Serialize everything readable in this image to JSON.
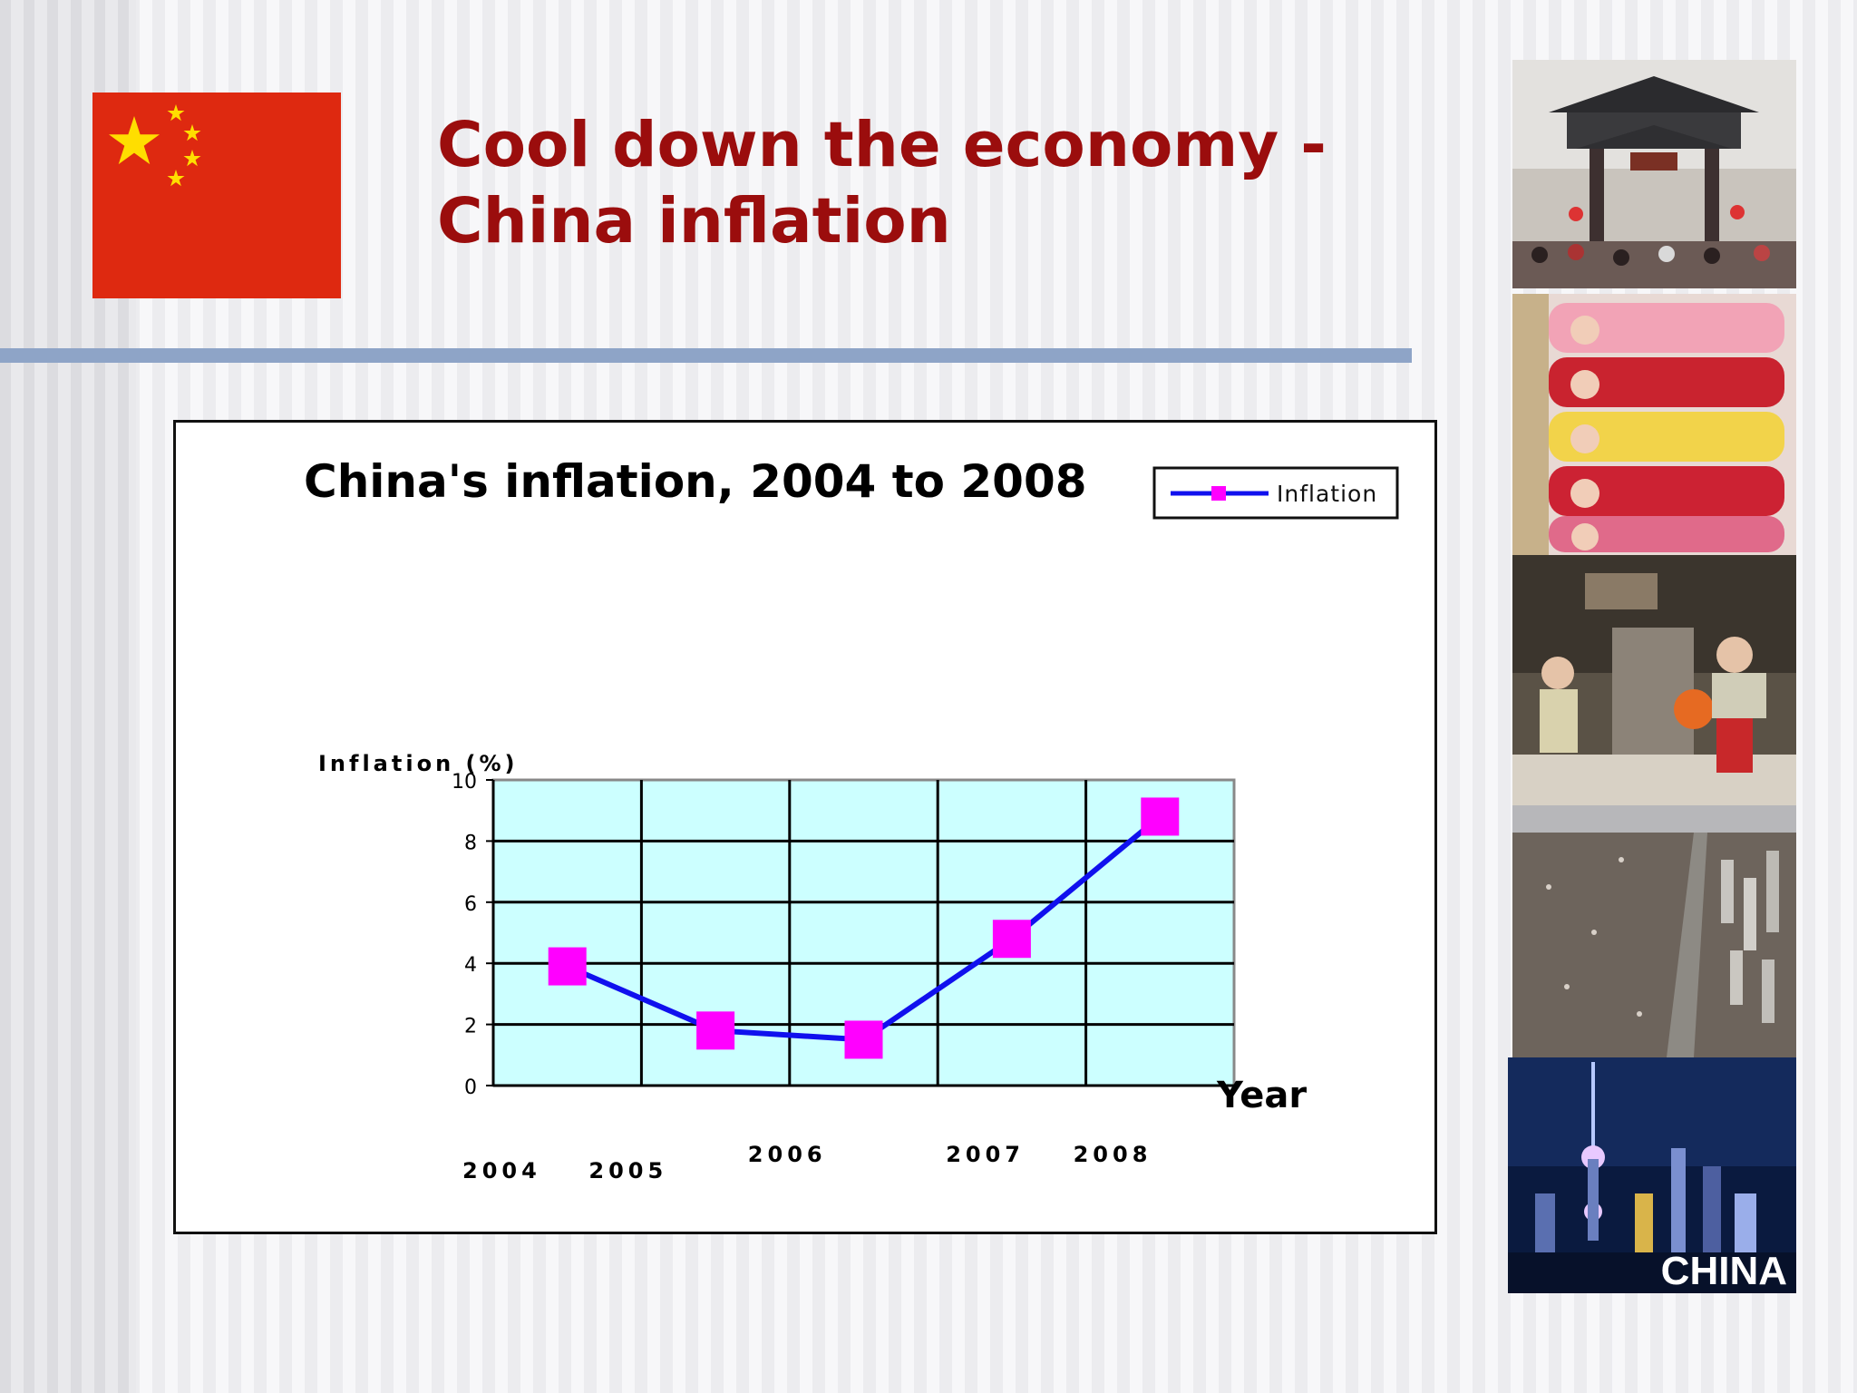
{
  "slide": {
    "title_line1": "Cool down the economy -",
    "title_line2": "China inflation"
  },
  "colors": {
    "title": "#9b0d0d",
    "flag_red": "#de2910",
    "flag_star": "#ffde00",
    "plot_bg": "#ccffff",
    "series_line": "#1010ee",
    "series_marker": "#ff00ff",
    "rule": "#8ea4c7"
  },
  "chart_data": {
    "type": "line",
    "title": "China's inflation, 2004 to 2008",
    "xlabel": "Year",
    "ylabel": "Inflation (%)",
    "ylim": [
      0,
      10
    ],
    "yticks": [
      0,
      2,
      4,
      6,
      8,
      10
    ],
    "grid": true,
    "legend": "top-right",
    "x": [
      "2004",
      "2005",
      "2006",
      "2007",
      "2008"
    ],
    "series": [
      {
        "name": "Inflation",
        "values": [
          3.9,
          1.8,
          1.5,
          4.8,
          8.8
        ]
      }
    ]
  },
  "photos": {
    "caption": "CHINA",
    "items": [
      "gate-photo",
      "babies-photo",
      "kitchen-photo",
      "city-aerial-photo",
      "skyline-night-photo"
    ]
  }
}
